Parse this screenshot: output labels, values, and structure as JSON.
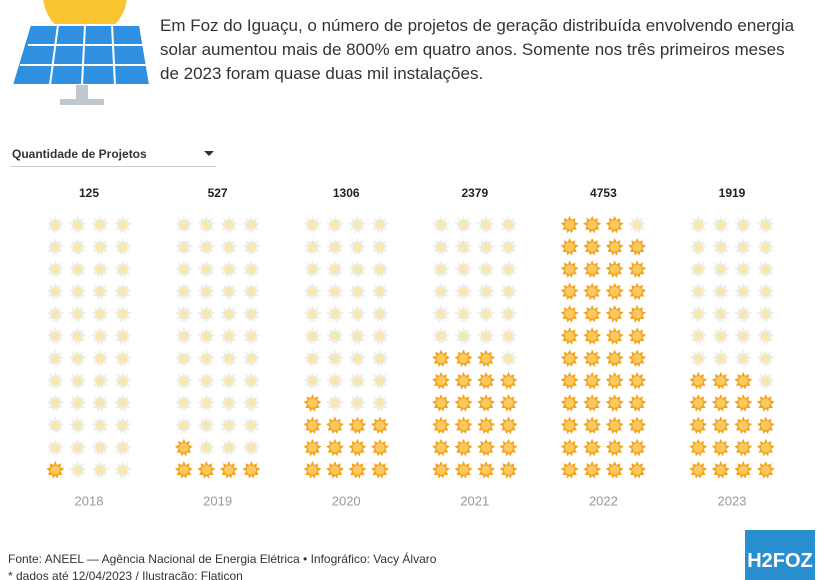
{
  "chart_data": {
    "type": "pictogram",
    "subtitle": "Em Foz do Iguaçu, o número de projetos de geração distribuída envolvendo energia solar aumentou mais de 800% em quatro anos. Somente nos três primeiros meses de 2023 foram quase duas mil instalações.",
    "selector": "Quantidade de Projetos",
    "categories": [
      "2018",
      "2019",
      "2020",
      "2021",
      "2022",
      "2023"
    ],
    "values": [
      125,
      527,
      1306,
      2379,
      4753,
      1919
    ],
    "ylim": [
      0,
      4800
    ],
    "color": "#f5a21f"
  },
  "footer": {
    "source": "Fonte: ANEEL — Agência Nacional de Energia Elétrica • Infográfico: Vacy Álvaro",
    "note": "* dados até 12/04/2023 / Ilustração: Flaticon"
  },
  "logo": "H2FOZ"
}
